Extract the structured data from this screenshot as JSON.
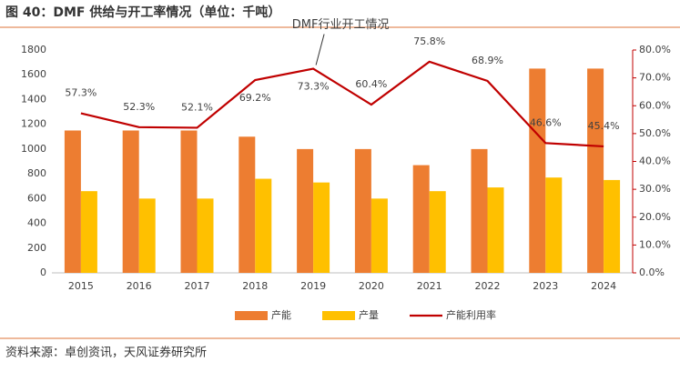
{
  "chart_data": {
    "type": "bar",
    "title": "图 40：DMF 供给与开工率情况（单位：千吨）",
    "source": "资料来源：卓创资讯，天风证券研究所",
    "annotation": "DMF行业开工情况",
    "categories": [
      "2015",
      "2016",
      "2017",
      "2018",
      "2019",
      "2020",
      "2021",
      "2022",
      "2023",
      "2024"
    ],
    "series": [
      {
        "name": "产能",
        "type": "bar",
        "color": "#ED7D31",
        "values": [
          1150,
          1150,
          1150,
          1100,
          1000,
          1000,
          870,
          1000,
          1650,
          1650
        ]
      },
      {
        "name": "产量",
        "type": "bar",
        "color": "#FFC000",
        "values": [
          660,
          600,
          600,
          760,
          730,
          600,
          660,
          690,
          770,
          750
        ]
      },
      {
        "name": "产能利用率",
        "type": "line",
        "axis": "y2",
        "color": "#C00000",
        "values": [
          57.3,
          52.3,
          52.1,
          69.2,
          73.3,
          60.4,
          75.8,
          68.9,
          46.6,
          45.4
        ],
        "value_labels": [
          "57.3%",
          "52.3%",
          "52.1%",
          "69.2%",
          "73.3%",
          "60.4%",
          "75.8%",
          "68.9%",
          "46.6%",
          "45.4%"
        ]
      }
    ],
    "ylim": [
      0,
      1800
    ],
    "yticks": [
      0,
      200,
      400,
      600,
      800,
      1000,
      1200,
      1400,
      1600,
      1800
    ],
    "y2lim": [
      0,
      80
    ],
    "y2ticks": [
      {
        "value": 0,
        "label": "0.0%"
      },
      {
        "value": 10,
        "label": "10.0%"
      },
      {
        "value": 20,
        "label": "20.0%"
      },
      {
        "value": 30,
        "label": "30.0%"
      },
      {
        "value": 40,
        "label": "40.0%"
      },
      {
        "value": 50,
        "label": "50.0%"
      },
      {
        "value": 60,
        "label": "60.0%"
      },
      {
        "value": 70,
        "label": "70.0%"
      },
      {
        "value": 80,
        "label": "80.0%"
      }
    ],
    "grid": false,
    "legend": "bottom"
  }
}
